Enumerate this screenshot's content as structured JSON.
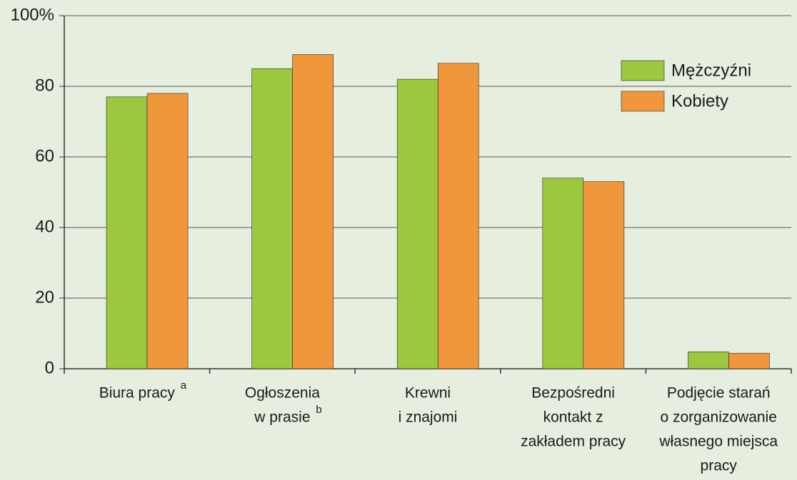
{
  "chart_data": {
    "type": "bar",
    "categories": [
      [
        "Biura pracy"
      ],
      [
        "Ogłoszenia",
        "w prasie"
      ],
      [
        "Krewni",
        "i znajomi"
      ],
      [
        "Bezpośredni",
        "kontakt z",
        "zakładem pracy"
      ],
      [
        "Podjęcie starań",
        "o zorganizowanie",
        "własnego miejsca",
        "pracy"
      ]
    ],
    "footnote_marks": [
      "a",
      "b",
      null,
      null,
      null
    ],
    "series": [
      {
        "name": "Mężczyźni",
        "color": "#9bc83e",
        "values": [
          77,
          85,
          82,
          54,
          4.8
        ]
      },
      {
        "name": "Kobiety",
        "color": "#f0973c",
        "values": [
          78,
          89,
          86.5,
          53,
          4.4
        ]
      }
    ],
    "ylim": [
      0,
      100
    ],
    "yticks": [
      0,
      20,
      40,
      60,
      80,
      {
        "value": 100,
        "label": "100%"
      }
    ],
    "grid": true,
    "legend": "upper right"
  }
}
